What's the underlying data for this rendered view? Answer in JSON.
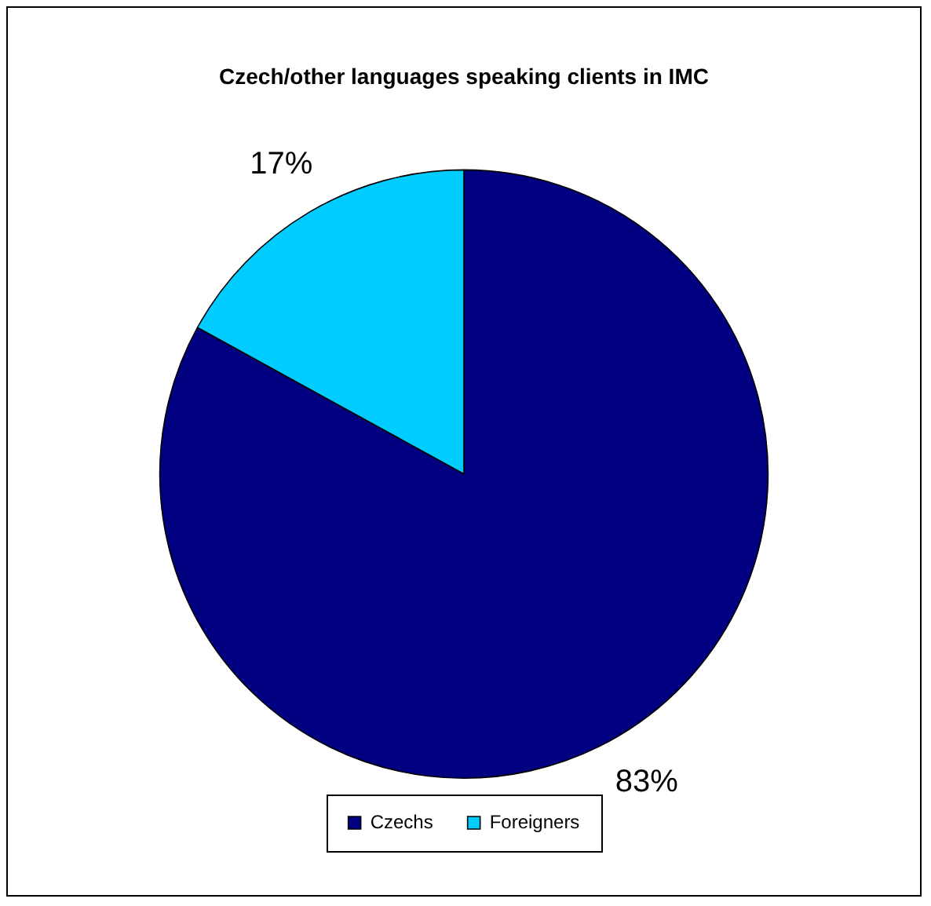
{
  "chart_data": {
    "type": "pie",
    "title": "Czech/other languages speaking clients in IMC",
    "categories": [
      "Czechs",
      "Foreigners"
    ],
    "values": [
      83,
      17
    ],
    "colors": [
      "#000080",
      "#00ccff"
    ],
    "value_labels": [
      "83%",
      "17%"
    ],
    "legend": "bottom"
  }
}
